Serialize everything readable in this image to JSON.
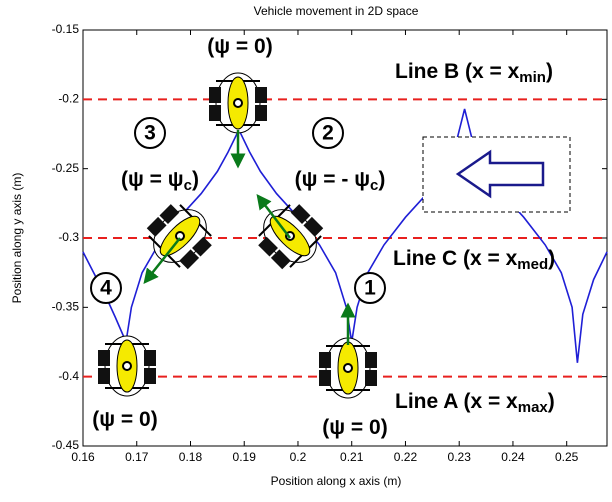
{
  "chart_data": {
    "type": "line",
    "title": "Vehicle movement in 2D space",
    "xlabel": "Position along x axis (m)",
    "ylabel": "Position along y axis (m)",
    "xlim": [
      0.16,
      0.2575
    ],
    "ylim": [
      -0.45,
      -0.15
    ],
    "xticks": [
      0.16,
      0.17,
      0.18,
      0.19,
      0.2,
      0.21,
      0.22,
      0.23,
      0.24,
      0.25
    ],
    "yticks": [
      -0.45,
      -0.4,
      -0.35,
      -0.3,
      -0.25,
      -0.2,
      -0.15
    ],
    "series": [
      {
        "color": "#1f1fd6",
        "x": [
          0.16,
          0.162,
          0.164,
          0.166,
          0.168,
          0.169,
          0.171,
          0.174,
          0.178,
          0.182,
          0.185,
          0.187,
          0.189,
          0.191,
          0.193,
          0.196,
          0.2,
          0.204,
          0.207,
          0.209,
          0.21,
          0.211,
          0.213,
          0.216,
          0.22,
          0.224,
          0.227,
          0.229,
          0.231,
          0.233,
          0.235,
          0.238,
          0.242,
          0.246,
          0.249,
          0.251,
          0.252,
          0.253,
          0.255,
          0.2575
        ],
        "y": [
          -0.31,
          -0.325,
          -0.34,
          -0.357,
          -0.375,
          -0.35,
          -0.325,
          -0.305,
          -0.285,
          -0.268,
          -0.252,
          -0.238,
          -0.222,
          -0.238,
          -0.252,
          -0.268,
          -0.285,
          -0.305,
          -0.325,
          -0.35,
          -0.375,
          -0.35,
          -0.325,
          -0.305,
          -0.285,
          -0.268,
          -0.252,
          -0.238,
          -0.207,
          -0.238,
          -0.252,
          -0.268,
          -0.285,
          -0.305,
          -0.325,
          -0.35,
          -0.39,
          -0.355,
          -0.33,
          -0.31
        ]
      }
    ],
    "reference_lines": {
      "color": "#e8201e",
      "values": [
        -0.2,
        -0.3,
        -0.4
      ]
    },
    "annotations": [
      {
        "text": "(ψ = 0)"
      },
      {
        "text": "(ψ = ψ",
        "sub": "c",
        "tail": ")"
      },
      {
        "text": "(ψ = - ψ",
        "sub": "c",
        "tail": ")"
      },
      {
        "text": "(ψ = 0)"
      },
      {
        "text": "(ψ = 0)"
      },
      {
        "text": "Line B (x = x",
        "sub": "min",
        "tail": ")"
      },
      {
        "text": "Line C (x = x",
        "sub": "med",
        "tail": ")"
      },
      {
        "text": "Line A (x = x",
        "sub": "max",
        "tail": ")"
      }
    ],
    "step_labels": [
      "1",
      "2",
      "3",
      "4"
    ]
  }
}
